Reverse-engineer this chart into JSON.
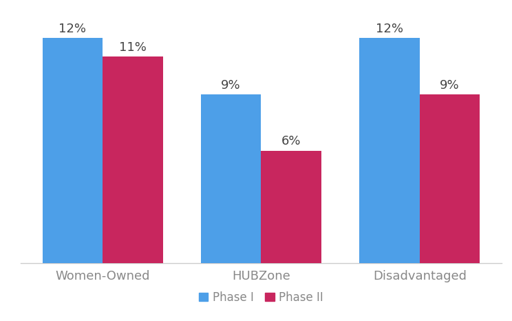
{
  "categories": [
    "Women-Owned",
    "HUBZone",
    "Disadvantaged"
  ],
  "phase1_values": [
    12,
    9,
    12
  ],
  "phase2_values": [
    11,
    6,
    9
  ],
  "phase1_color": "#4D9FE8",
  "phase2_color": "#C8265E",
  "bar_width": 0.38,
  "ylim": [
    0,
    13.5
  ],
  "tick_fontsize": 13,
  "legend_fontsize": 12,
  "value_fontsize": 13,
  "legend_labels": [
    "Phase I",
    "Phase II"
  ],
  "background_color": "#ffffff",
  "axis_color": "#cccccc"
}
